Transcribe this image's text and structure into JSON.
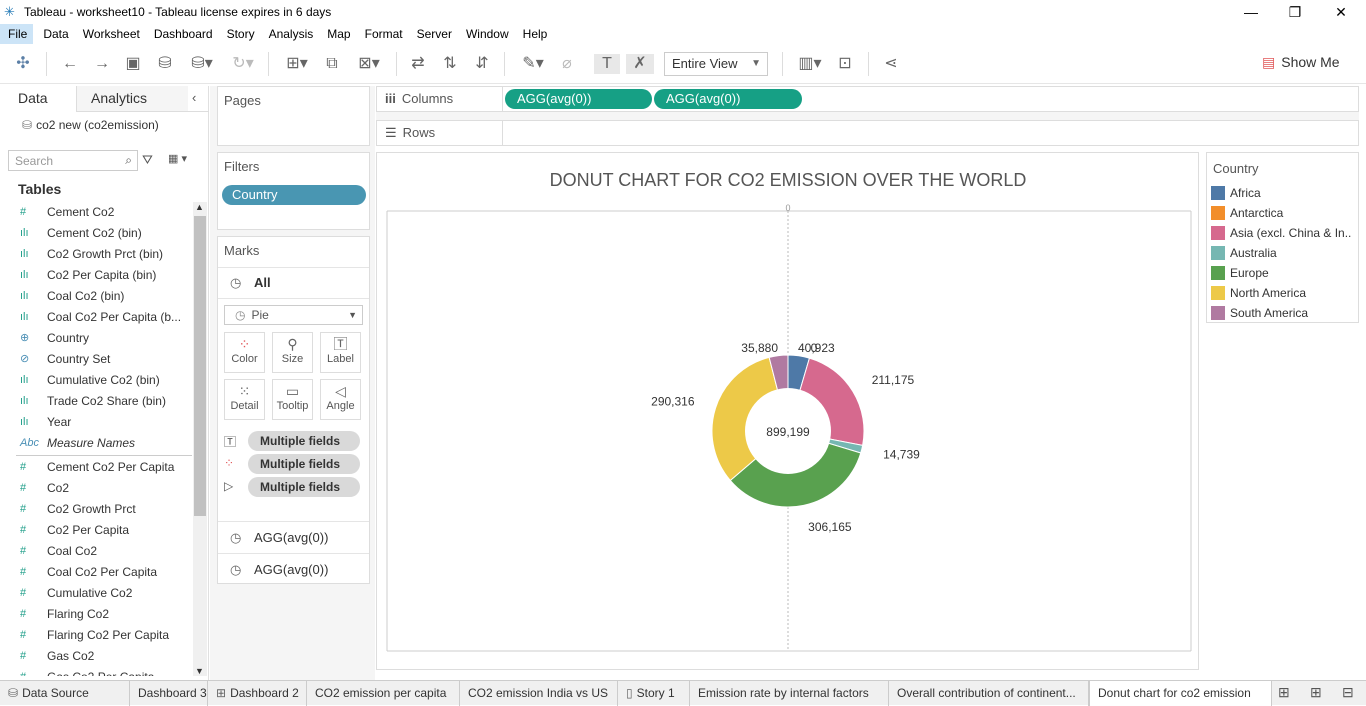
{
  "app": {
    "title": "Tableau - worksheet10 - Tableau license expires in 6 days"
  },
  "menu": [
    "File",
    "Data",
    "Worksheet",
    "Dashboard",
    "Story",
    "Analysis",
    "Map",
    "Format",
    "Server",
    "Window",
    "Help"
  ],
  "toolbar": {
    "view_mode": "Entire View",
    "show_me": "Show Me"
  },
  "data_pane": {
    "tab_data": "Data",
    "tab_analytics": "Analytics",
    "datasource": "co2 new (co2emission)",
    "search_placeholder": "Search",
    "tables_label": "Tables",
    "dimensions": [
      {
        "icon": "#",
        "name": "Cement Co2"
      },
      {
        "icon": "ılı",
        "name": "Cement Co2 (bin)"
      },
      {
        "icon": "ılı",
        "name": "Co2 Growth Prct (bin)"
      },
      {
        "icon": "ılı",
        "name": "Co2 Per Capita (bin)"
      },
      {
        "icon": "ılı",
        "name": "Coal Co2 (bin)"
      },
      {
        "icon": "ılı",
        "name": "Coal Co2 Per Capita (b..."
      },
      {
        "icon": "⊕",
        "name": "Country"
      },
      {
        "icon": "⊘",
        "name": "Country Set"
      },
      {
        "icon": "ılı",
        "name": "Cumulative Co2 (bin)"
      },
      {
        "icon": "ılı",
        "name": "Trade Co2 Share (bin)"
      },
      {
        "icon": "ılı",
        "name": "Year"
      },
      {
        "icon": "Abc",
        "name": "Measure Names"
      }
    ],
    "measures": [
      {
        "icon": "#",
        "name": "Cement Co2 Per Capita"
      },
      {
        "icon": "#",
        "name": "Co2"
      },
      {
        "icon": "#",
        "name": "Co2 Growth Prct"
      },
      {
        "icon": "#",
        "name": "Co2 Per Capita"
      },
      {
        "icon": "#",
        "name": "Coal Co2"
      },
      {
        "icon": "#",
        "name": "Coal Co2 Per Capita"
      },
      {
        "icon": "#",
        "name": "Cumulative Co2"
      },
      {
        "icon": "#",
        "name": "Flaring Co2"
      },
      {
        "icon": "#",
        "name": "Flaring Co2 Per Capita"
      },
      {
        "icon": "#",
        "name": "Gas Co2"
      },
      {
        "icon": "#",
        "name": "Gas Co2 Per Capita"
      }
    ]
  },
  "cards": {
    "pages": "Pages",
    "filters": "Filters",
    "filter_pill": "Country",
    "marks": "Marks",
    "marks_all": "All",
    "mark_type": "Pie",
    "mark_buttons": [
      "Color",
      "Size",
      "Label",
      "Detail",
      "Tooltip",
      "Angle"
    ],
    "mark_pills": [
      "Multiple fields",
      "Multiple fields",
      "Multiple fields"
    ],
    "agg1": "AGG(avg(0))",
    "agg2": "AGG(avg(0))"
  },
  "shelves": {
    "columns_label": "Columns",
    "rows_label": "Rows",
    "col_pill1": "AGG(avg(0))",
    "col_pill2": "AGG(avg(0))"
  },
  "chart_data": {
    "type": "pie",
    "title": "DONUT CHART FOR CO2 EMISSION OVER THE WORLD",
    "axis_tick_top": "0",
    "axis_tick_center": "0",
    "center_label": "899,199",
    "categories": [
      "Africa",
      "Antarctica",
      "Asia (excl. China & India)",
      "Australia",
      "Europe",
      "North America",
      "South America"
    ],
    "values": [
      40923,
      0,
      211175,
      14739,
      306165,
      290316,
      35880
    ],
    "labels": [
      "40,923",
      "",
      "211,175",
      "14,739",
      "306,165",
      "290,316",
      "35,880"
    ],
    "colors": [
      "#4e79a7",
      "#f28e2b",
      "#d6698e",
      "#76b7b2",
      "#59a14f",
      "#edc948",
      "#b07aa1"
    ]
  },
  "legend": {
    "title": "Country",
    "items": [
      {
        "name": "Africa",
        "color": "#4e79a7"
      },
      {
        "name": "Antarctica",
        "color": "#f28e2b"
      },
      {
        "name": "Asia (excl. China & In..",
        "color": "#d6698e"
      },
      {
        "name": "Australia",
        "color": "#76b7b2"
      },
      {
        "name": "Europe",
        "color": "#59a14f"
      },
      {
        "name": "North America",
        "color": "#edc948"
      },
      {
        "name": "South America",
        "color": "#b07aa1"
      }
    ]
  },
  "bottom_tabs": [
    "Data Source",
    "Dashboard 3",
    "Dashboard 2",
    "CO2 emission per capita",
    "CO2 emission India vs US",
    "Story 1",
    "Emission rate by internal factors",
    "Overall contribution of continent...",
    "Donut chart for co2 emission"
  ]
}
